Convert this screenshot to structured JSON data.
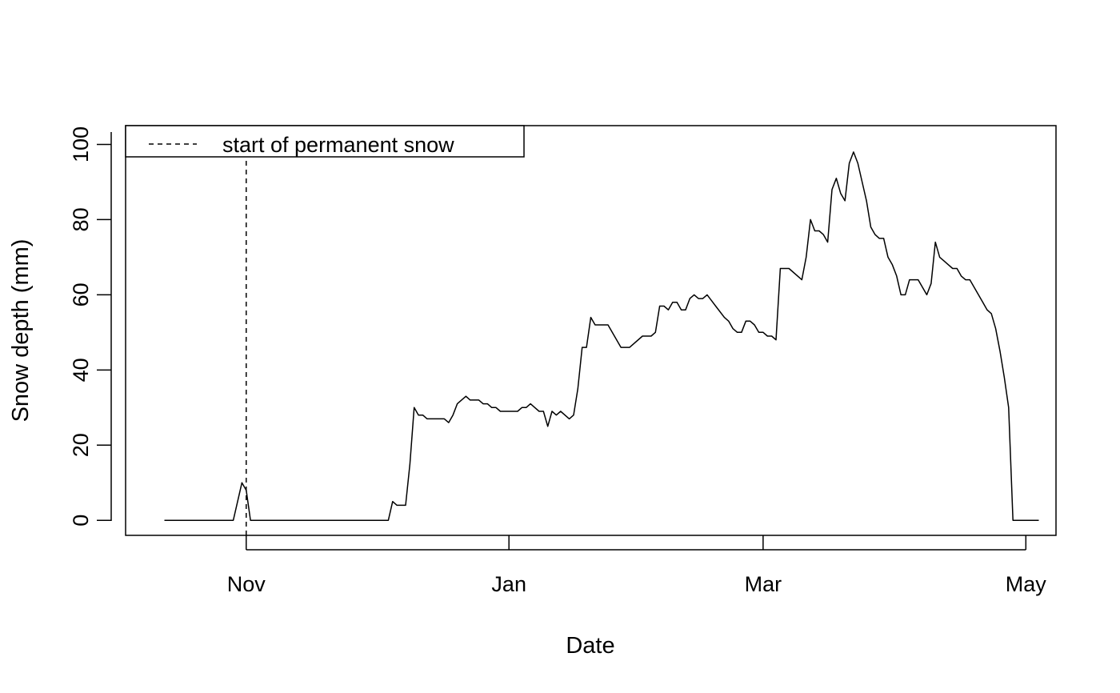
{
  "chart_data": {
    "type": "line",
    "title": "",
    "xlabel": "Date",
    "ylabel": "Snow depth (mm)",
    "x_ticks": [
      {
        "label": "Nov",
        "date": "2018-11-01"
      },
      {
        "label": "Jan",
        "date": "2019-01-01"
      },
      {
        "label": "Mar",
        "date": "2019-03-01"
      },
      {
        "label": "May",
        "date": "2019-05-01"
      }
    ],
    "y_ticks": [
      0,
      20,
      40,
      60,
      80,
      100
    ],
    "xlim": [
      "2018-10-04",
      "2019-05-08"
    ],
    "ylim": [
      -4,
      105
    ],
    "grid": false,
    "legend": {
      "placement": "top-left",
      "entries": [
        {
          "label": "start of permanent snow",
          "linestyle": "dashed"
        }
      ]
    },
    "vline": {
      "date": "2018-11-01",
      "linestyle": "dashed"
    },
    "series": [
      {
        "color": "#000000",
        "points": [
          [
            "2018-10-13",
            0
          ],
          [
            "2018-10-29",
            0
          ],
          [
            "2018-10-31",
            10
          ],
          [
            "2018-11-01",
            8
          ],
          [
            "2018-11-02",
            0
          ],
          [
            "2018-12-04",
            0
          ],
          [
            "2018-12-05",
            5
          ],
          [
            "2018-12-06",
            4
          ],
          [
            "2018-12-08",
            4
          ],
          [
            "2018-12-09",
            15
          ],
          [
            "2018-12-10",
            30
          ],
          [
            "2018-12-11",
            28
          ],
          [
            "2018-12-12",
            28
          ],
          [
            "2018-12-13",
            27
          ],
          [
            "2018-12-17",
            27
          ],
          [
            "2018-12-18",
            26
          ],
          [
            "2018-12-19",
            28
          ],
          [
            "2018-12-20",
            31
          ],
          [
            "2018-12-22",
            33
          ],
          [
            "2018-12-23",
            32
          ],
          [
            "2018-12-25",
            32
          ],
          [
            "2018-12-26",
            31
          ],
          [
            "2018-12-27",
            31
          ],
          [
            "2018-12-28",
            30
          ],
          [
            "2018-12-29",
            30
          ],
          [
            "2018-12-30",
            29
          ],
          [
            "2019-01-03",
            29
          ],
          [
            "2019-01-04",
            30
          ],
          [
            "2019-01-05",
            30
          ],
          [
            "2019-01-06",
            31
          ],
          [
            "2019-01-07",
            30
          ],
          [
            "2019-01-08",
            29
          ],
          [
            "2019-01-09",
            29
          ],
          [
            "2019-01-10",
            25
          ],
          [
            "2019-01-11",
            29
          ],
          [
            "2019-01-12",
            28
          ],
          [
            "2019-01-13",
            29
          ],
          [
            "2019-01-15",
            27
          ],
          [
            "2019-01-16",
            28
          ],
          [
            "2019-01-17",
            35
          ],
          [
            "2019-01-18",
            46
          ],
          [
            "2019-01-19",
            46
          ],
          [
            "2019-01-20",
            54
          ],
          [
            "2019-01-21",
            52
          ],
          [
            "2019-01-24",
            52
          ],
          [
            "2019-01-27",
            46
          ],
          [
            "2019-01-29",
            46
          ],
          [
            "2019-02-01",
            49
          ],
          [
            "2019-02-03",
            49
          ],
          [
            "2019-02-04",
            50
          ],
          [
            "2019-02-05",
            57
          ],
          [
            "2019-02-06",
            57
          ],
          [
            "2019-02-07",
            56
          ],
          [
            "2019-02-08",
            58
          ],
          [
            "2019-02-09",
            58
          ],
          [
            "2019-02-10",
            56
          ],
          [
            "2019-02-11",
            56
          ],
          [
            "2019-02-12",
            59
          ],
          [
            "2019-02-13",
            60
          ],
          [
            "2019-02-14",
            59
          ],
          [
            "2019-02-15",
            59
          ],
          [
            "2019-02-16",
            60
          ],
          [
            "2019-02-18",
            57
          ],
          [
            "2019-02-20",
            54
          ],
          [
            "2019-02-21",
            53
          ],
          [
            "2019-02-22",
            51
          ],
          [
            "2019-02-23",
            50
          ],
          [
            "2019-02-24",
            50
          ],
          [
            "2019-02-25",
            53
          ],
          [
            "2019-02-26",
            53
          ],
          [
            "2019-02-27",
            52
          ],
          [
            "2019-02-28",
            50
          ],
          [
            "2019-03-01",
            50
          ],
          [
            "2019-03-02",
            49
          ],
          [
            "2019-03-03",
            49
          ],
          [
            "2019-03-04",
            48
          ],
          [
            "2019-03-05",
            67
          ],
          [
            "2019-03-07",
            67
          ],
          [
            "2019-03-10",
            64
          ],
          [
            "2019-03-11",
            70
          ],
          [
            "2019-03-12",
            80
          ],
          [
            "2019-03-13",
            77
          ],
          [
            "2019-03-14",
            77
          ],
          [
            "2019-03-15",
            76
          ],
          [
            "2019-03-16",
            74
          ],
          [
            "2019-03-17",
            88
          ],
          [
            "2019-03-18",
            91
          ],
          [
            "2019-03-19",
            87
          ],
          [
            "2019-03-20",
            85
          ],
          [
            "2019-03-21",
            95
          ],
          [
            "2019-03-22",
            98
          ],
          [
            "2019-03-23",
            95
          ],
          [
            "2019-03-24",
            90
          ],
          [
            "2019-03-25",
            85
          ],
          [
            "2019-03-26",
            78
          ],
          [
            "2019-03-27",
            76
          ],
          [
            "2019-03-28",
            75
          ],
          [
            "2019-03-29",
            75
          ],
          [
            "2019-03-30",
            70
          ],
          [
            "2019-03-31",
            68
          ],
          [
            "2019-04-01",
            65
          ],
          [
            "2019-04-02",
            60
          ],
          [
            "2019-04-03",
            60
          ],
          [
            "2019-04-04",
            64
          ],
          [
            "2019-04-06",
            64
          ],
          [
            "2019-04-08",
            60
          ],
          [
            "2019-04-09",
            63
          ],
          [
            "2019-04-10",
            74
          ],
          [
            "2019-04-11",
            70
          ],
          [
            "2019-04-12",
            69
          ],
          [
            "2019-04-13",
            68
          ],
          [
            "2019-04-14",
            67
          ],
          [
            "2019-04-15",
            67
          ],
          [
            "2019-04-16",
            65
          ],
          [
            "2019-04-17",
            64
          ],
          [
            "2019-04-18",
            64
          ],
          [
            "2019-04-19",
            62
          ],
          [
            "2019-04-20",
            60
          ],
          [
            "2019-04-21",
            58
          ],
          [
            "2019-04-22",
            56
          ],
          [
            "2019-04-23",
            55
          ],
          [
            "2019-04-24",
            51
          ],
          [
            "2019-04-25",
            45
          ],
          [
            "2019-04-26",
            38
          ],
          [
            "2019-04-27",
            30
          ],
          [
            "2019-04-28",
            0
          ],
          [
            "2019-05-04",
            0
          ]
        ]
      }
    ]
  }
}
